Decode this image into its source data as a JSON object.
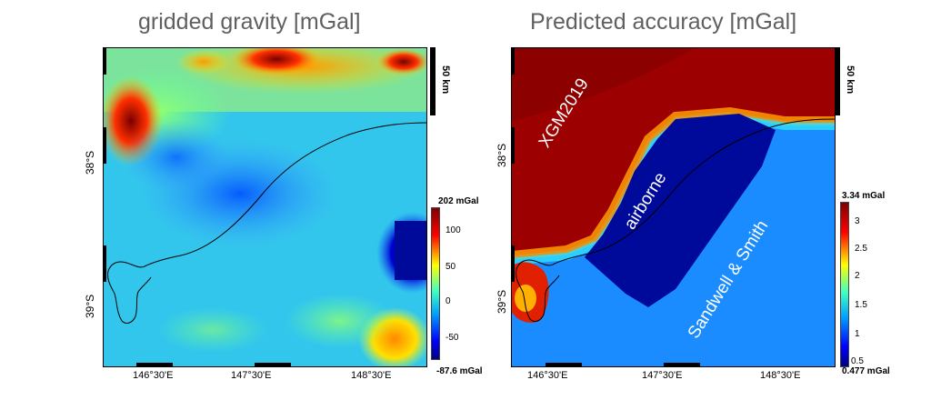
{
  "left_panel": {
    "title": "gridded gravity [mGal]",
    "colorbar": {
      "max_label": "202 mGal",
      "min_label": "-87.6 mGal",
      "ticks": [
        "100",
        "50",
        "0",
        "-50"
      ],
      "colormap": "jet"
    }
  },
  "right_panel": {
    "title": "Predicted accuracy [mGal]",
    "colorbar": {
      "max_label": "3.34 mGal",
      "min_label": "0.477 mGal",
      "ticks": [
        "3",
        "2.5",
        "2",
        "1.5",
        "1",
        "0.5"
      ],
      "colormap": "jet"
    },
    "annotations": {
      "xgm": "XGM2019",
      "airborne": "airborne",
      "sandwell": "Sandwell & Smith"
    }
  },
  "axes": {
    "lon_ticks": [
      "146°30'E",
      "147°30'E",
      "148°30'E"
    ],
    "lat_ticks": [
      "38°S",
      "39°S"
    ]
  },
  "scale_bar": {
    "label": "50 km"
  },
  "colors": {
    "deep_red": "#8b0000",
    "dark_blue": "#000099",
    "light_blue": "#1a8cff",
    "cyan": "#3fd0e8"
  }
}
